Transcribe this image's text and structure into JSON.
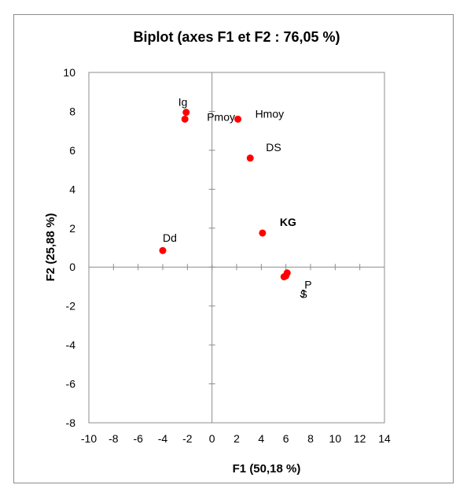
{
  "chart_data": {
    "type": "scatter",
    "title": "Biplot (axes F1 et F2 : 76,05 %)",
    "xlabel": "F1 (50,18 %)",
    "ylabel": "F2 (25,88 %)",
    "xlim": [
      -10,
      14
    ],
    "ylim": [
      -8,
      10
    ],
    "xticks": [
      -10,
      -8,
      -6,
      -4,
      -2,
      0,
      2,
      4,
      6,
      8,
      10,
      12,
      14
    ],
    "yticks": [
      -8,
      -6,
      -4,
      -2,
      0,
      2,
      4,
      6,
      8,
      10
    ],
    "grid": false,
    "point_color": "#ff0000",
    "points": [
      {
        "x": -2.1,
        "y": 7.95,
        "label": "Ig",
        "bold": false
      },
      {
        "x": -2.2,
        "y": 7.6,
        "label": "Pmoy",
        "bold": false
      },
      {
        "x": 2.1,
        "y": 7.6,
        "label": "Hmoy",
        "bold": false
      },
      {
        "x": 3.1,
        "y": 5.6,
        "label": "DS",
        "bold": false
      },
      {
        "x": 4.1,
        "y": 1.75,
        "label": "KG",
        "bold": true
      },
      {
        "x": -4.0,
        "y": 0.85,
        "label": "Dd",
        "bold": false
      },
      {
        "x": 6.1,
        "y": -0.3,
        "label": "P",
        "bold": false
      },
      {
        "x": 5.85,
        "y": -0.5,
        "label": "J",
        "bold": false
      },
      {
        "x": 6.0,
        "y": -0.45,
        "label": "S",
        "bold": false
      }
    ]
  }
}
